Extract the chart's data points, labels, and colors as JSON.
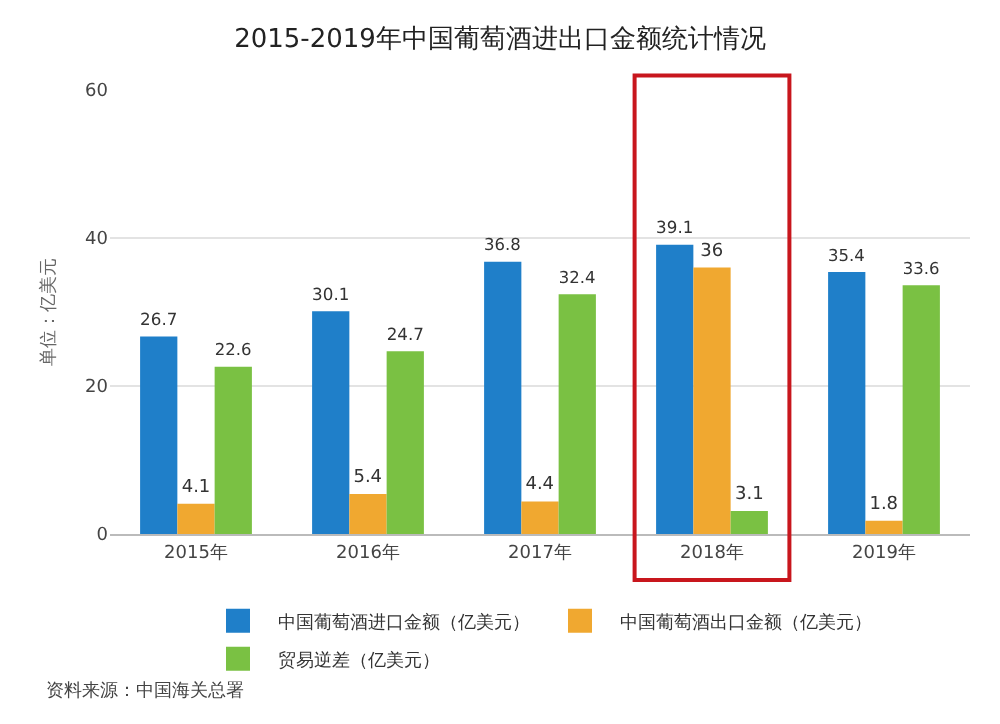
{
  "chart_data": {
    "type": "bar",
    "title": "2015-2019年中国葡萄酒进出口金额统计情况",
    "ylabel": "单位：亿美元",
    "categories": [
      "2015年",
      "2016年",
      "2017年",
      "2018年",
      "2019年"
    ],
    "series": [
      {
        "name": "中国葡萄酒进口金额（亿美元）",
        "color": "#1f7fc9",
        "values": [
          26.7,
          30.1,
          36.8,
          39.1,
          35.4
        ]
      },
      {
        "name": "中国葡萄酒出口金额（亿美元）",
        "color": "#f0a830",
        "values": [
          4.1,
          5.4,
          4.4,
          36,
          1.8
        ]
      },
      {
        "name": "贸易逆差（亿美元）",
        "color": "#7ac143",
        "values": [
          22.6,
          24.7,
          32.4,
          3.1,
          33.6
        ]
      }
    ],
    "ylim": [
      0,
      60
    ],
    "yticks": [
      0,
      20,
      40,
      60
    ],
    "grid": "y",
    "legend": "bottom",
    "data_labels": true,
    "annotations": [
      "资料来源：中国海关总署"
    ]
  }
}
